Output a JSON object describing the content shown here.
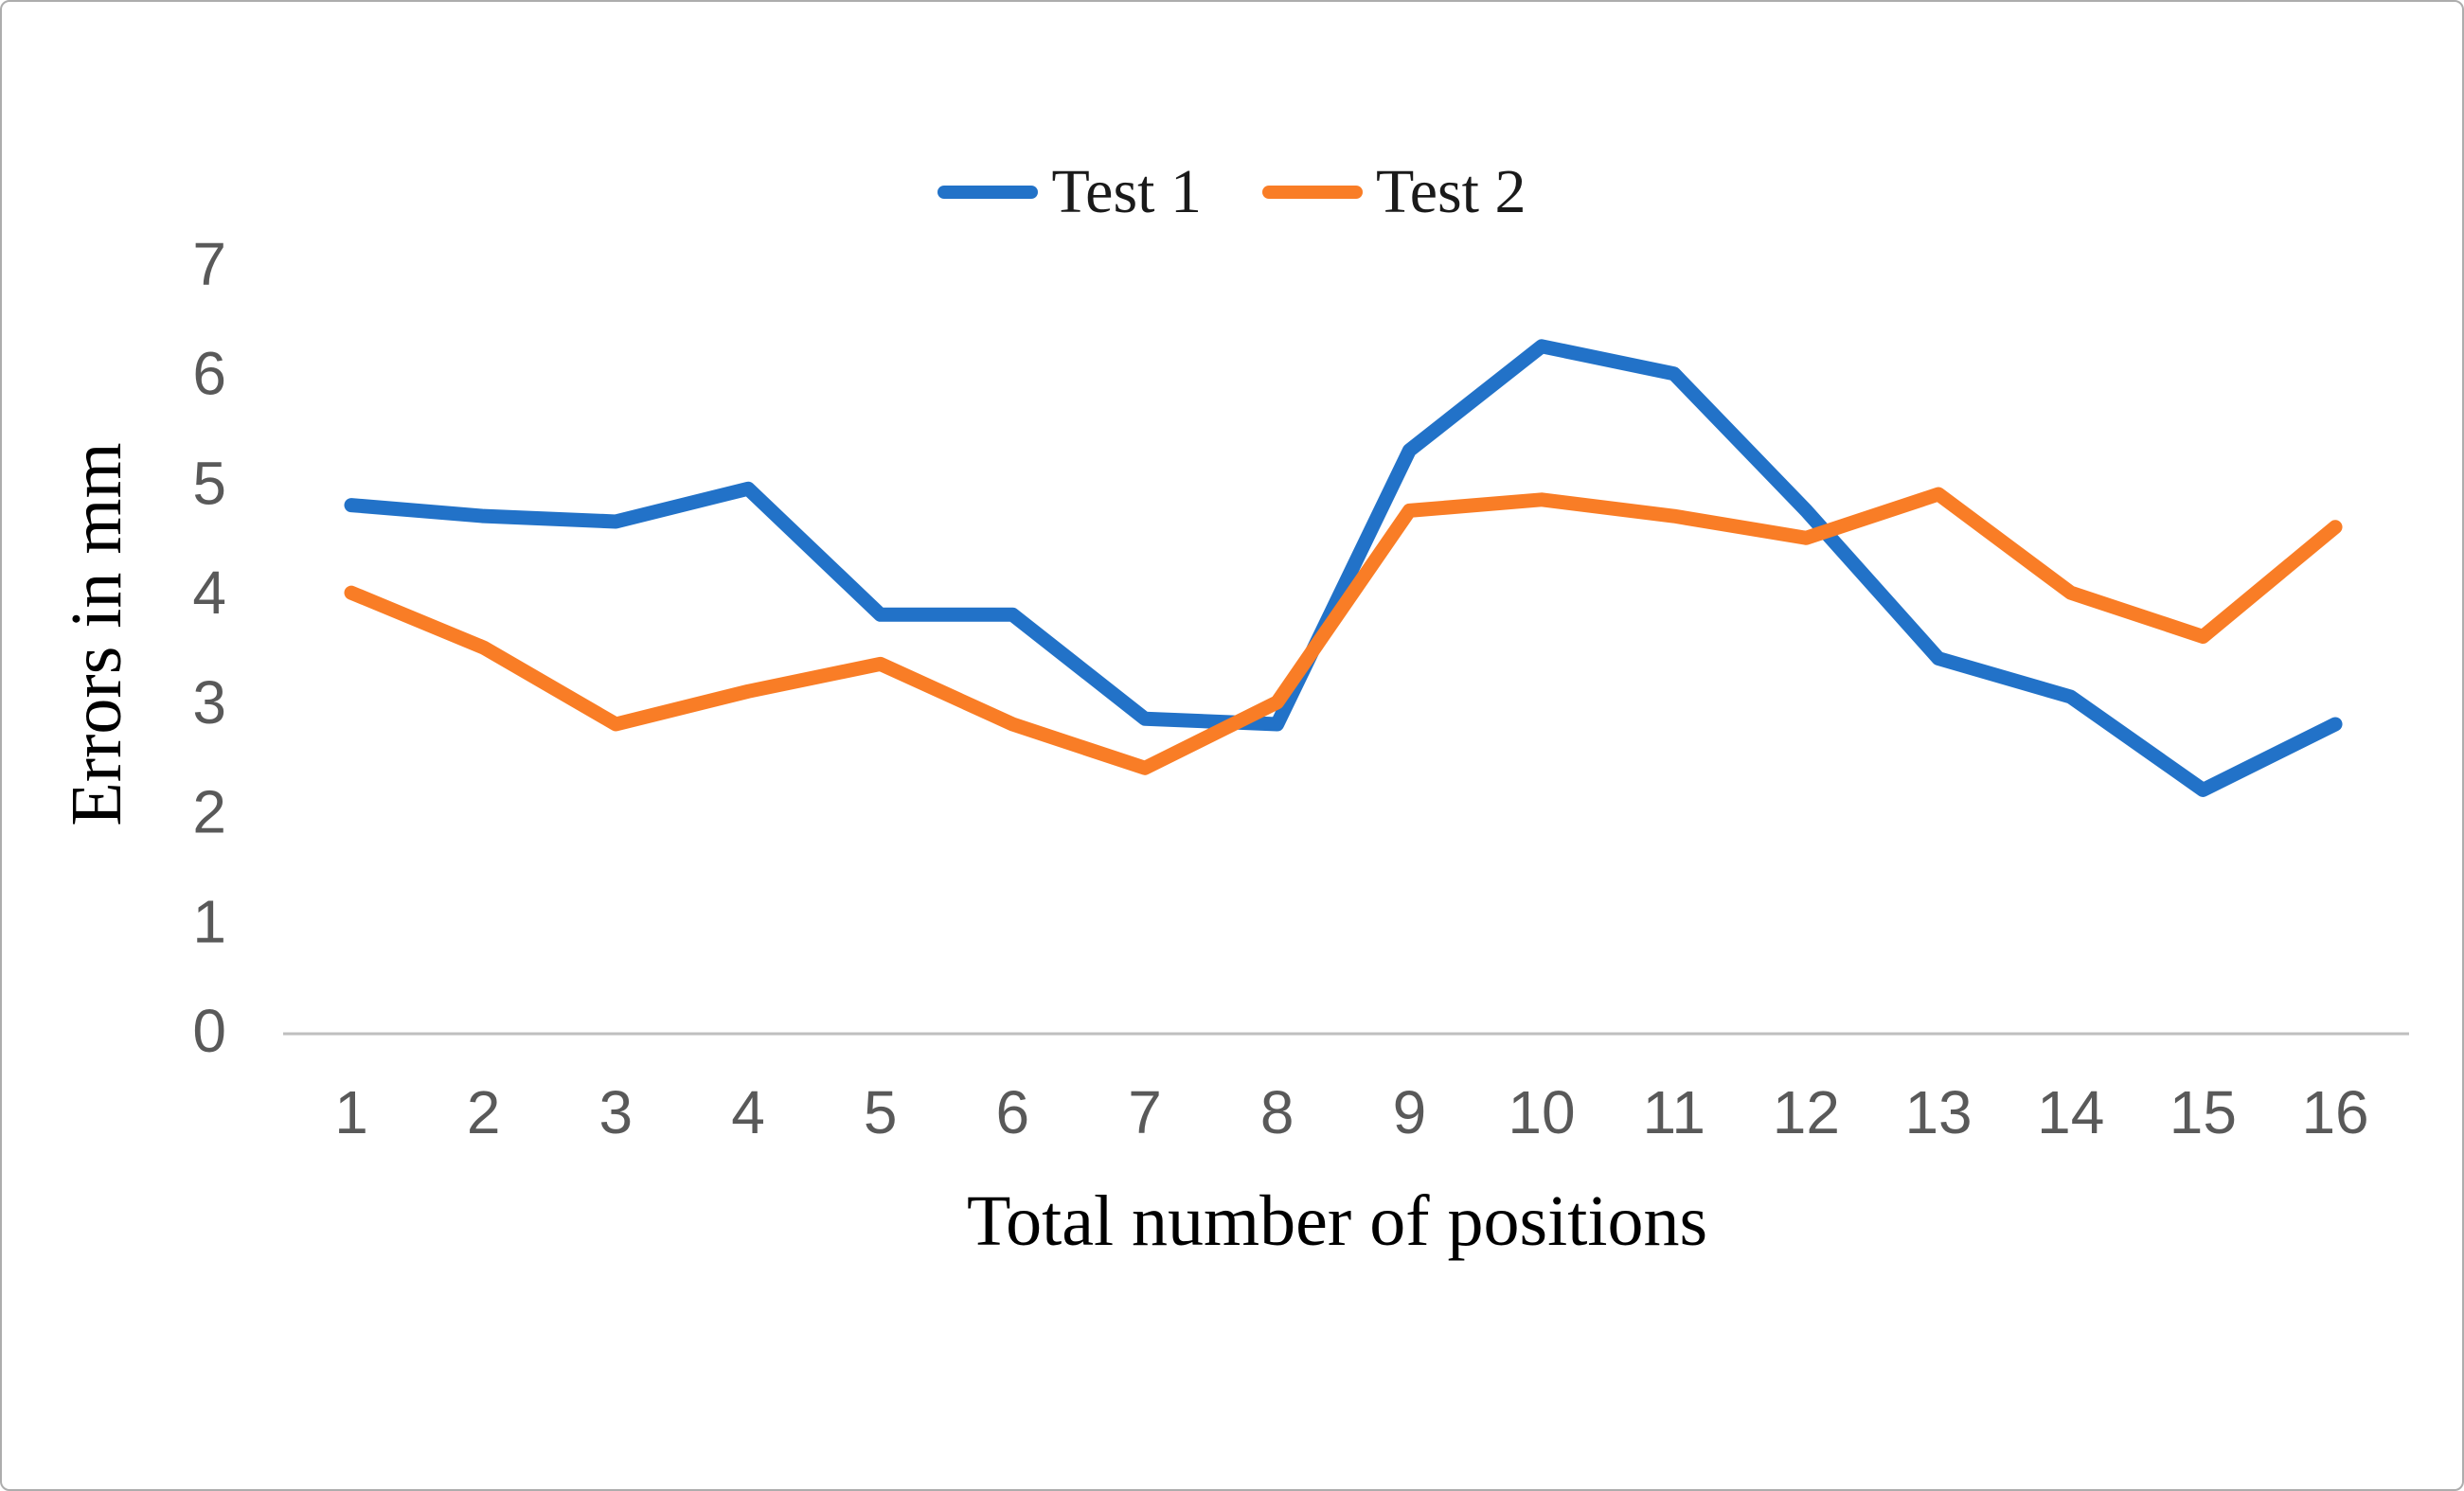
{
  "legend": {
    "items": [
      {
        "label": "Test 1",
        "color": "#2272c8"
      },
      {
        "label": "Test 2",
        "color": "#f97d26"
      }
    ]
  },
  "axes": {
    "x_title": "Total number of positions",
    "y_title": "Errors in mm",
    "tick_color": "#595959",
    "axis_line_color": "#bfbfbf"
  },
  "chart_data": {
    "type": "line",
    "categories": [
      "1",
      "2",
      "3",
      "4",
      "5",
      "6",
      "7",
      "8",
      "9",
      "10",
      "11",
      "12",
      "13",
      "14",
      "15",
      "16"
    ],
    "series": [
      {
        "name": "Test 1",
        "color": "#2272c8",
        "values": [
          4.8,
          4.7,
          4.65,
          4.95,
          3.8,
          3.8,
          2.85,
          2.8,
          5.3,
          6.25,
          6.0,
          4.75,
          3.4,
          3.05,
          2.2,
          2.8
        ]
      },
      {
        "name": "Test 2",
        "color": "#f97d26",
        "values": [
          4.0,
          3.5,
          2.8,
          3.1,
          3.35,
          2.8,
          2.4,
          3.0,
          4.75,
          4.85,
          4.7,
          4.5,
          4.9,
          4.0,
          3.6,
          4.6
        ]
      }
    ],
    "title": "",
    "xlabel": "Total number of positions",
    "ylabel": "Errors in mm",
    "ylim": [
      0,
      7
    ],
    "yticks": [
      0,
      1,
      2,
      3,
      4,
      5,
      6,
      7
    ],
    "grid": false,
    "legend_position": "top-center"
  }
}
